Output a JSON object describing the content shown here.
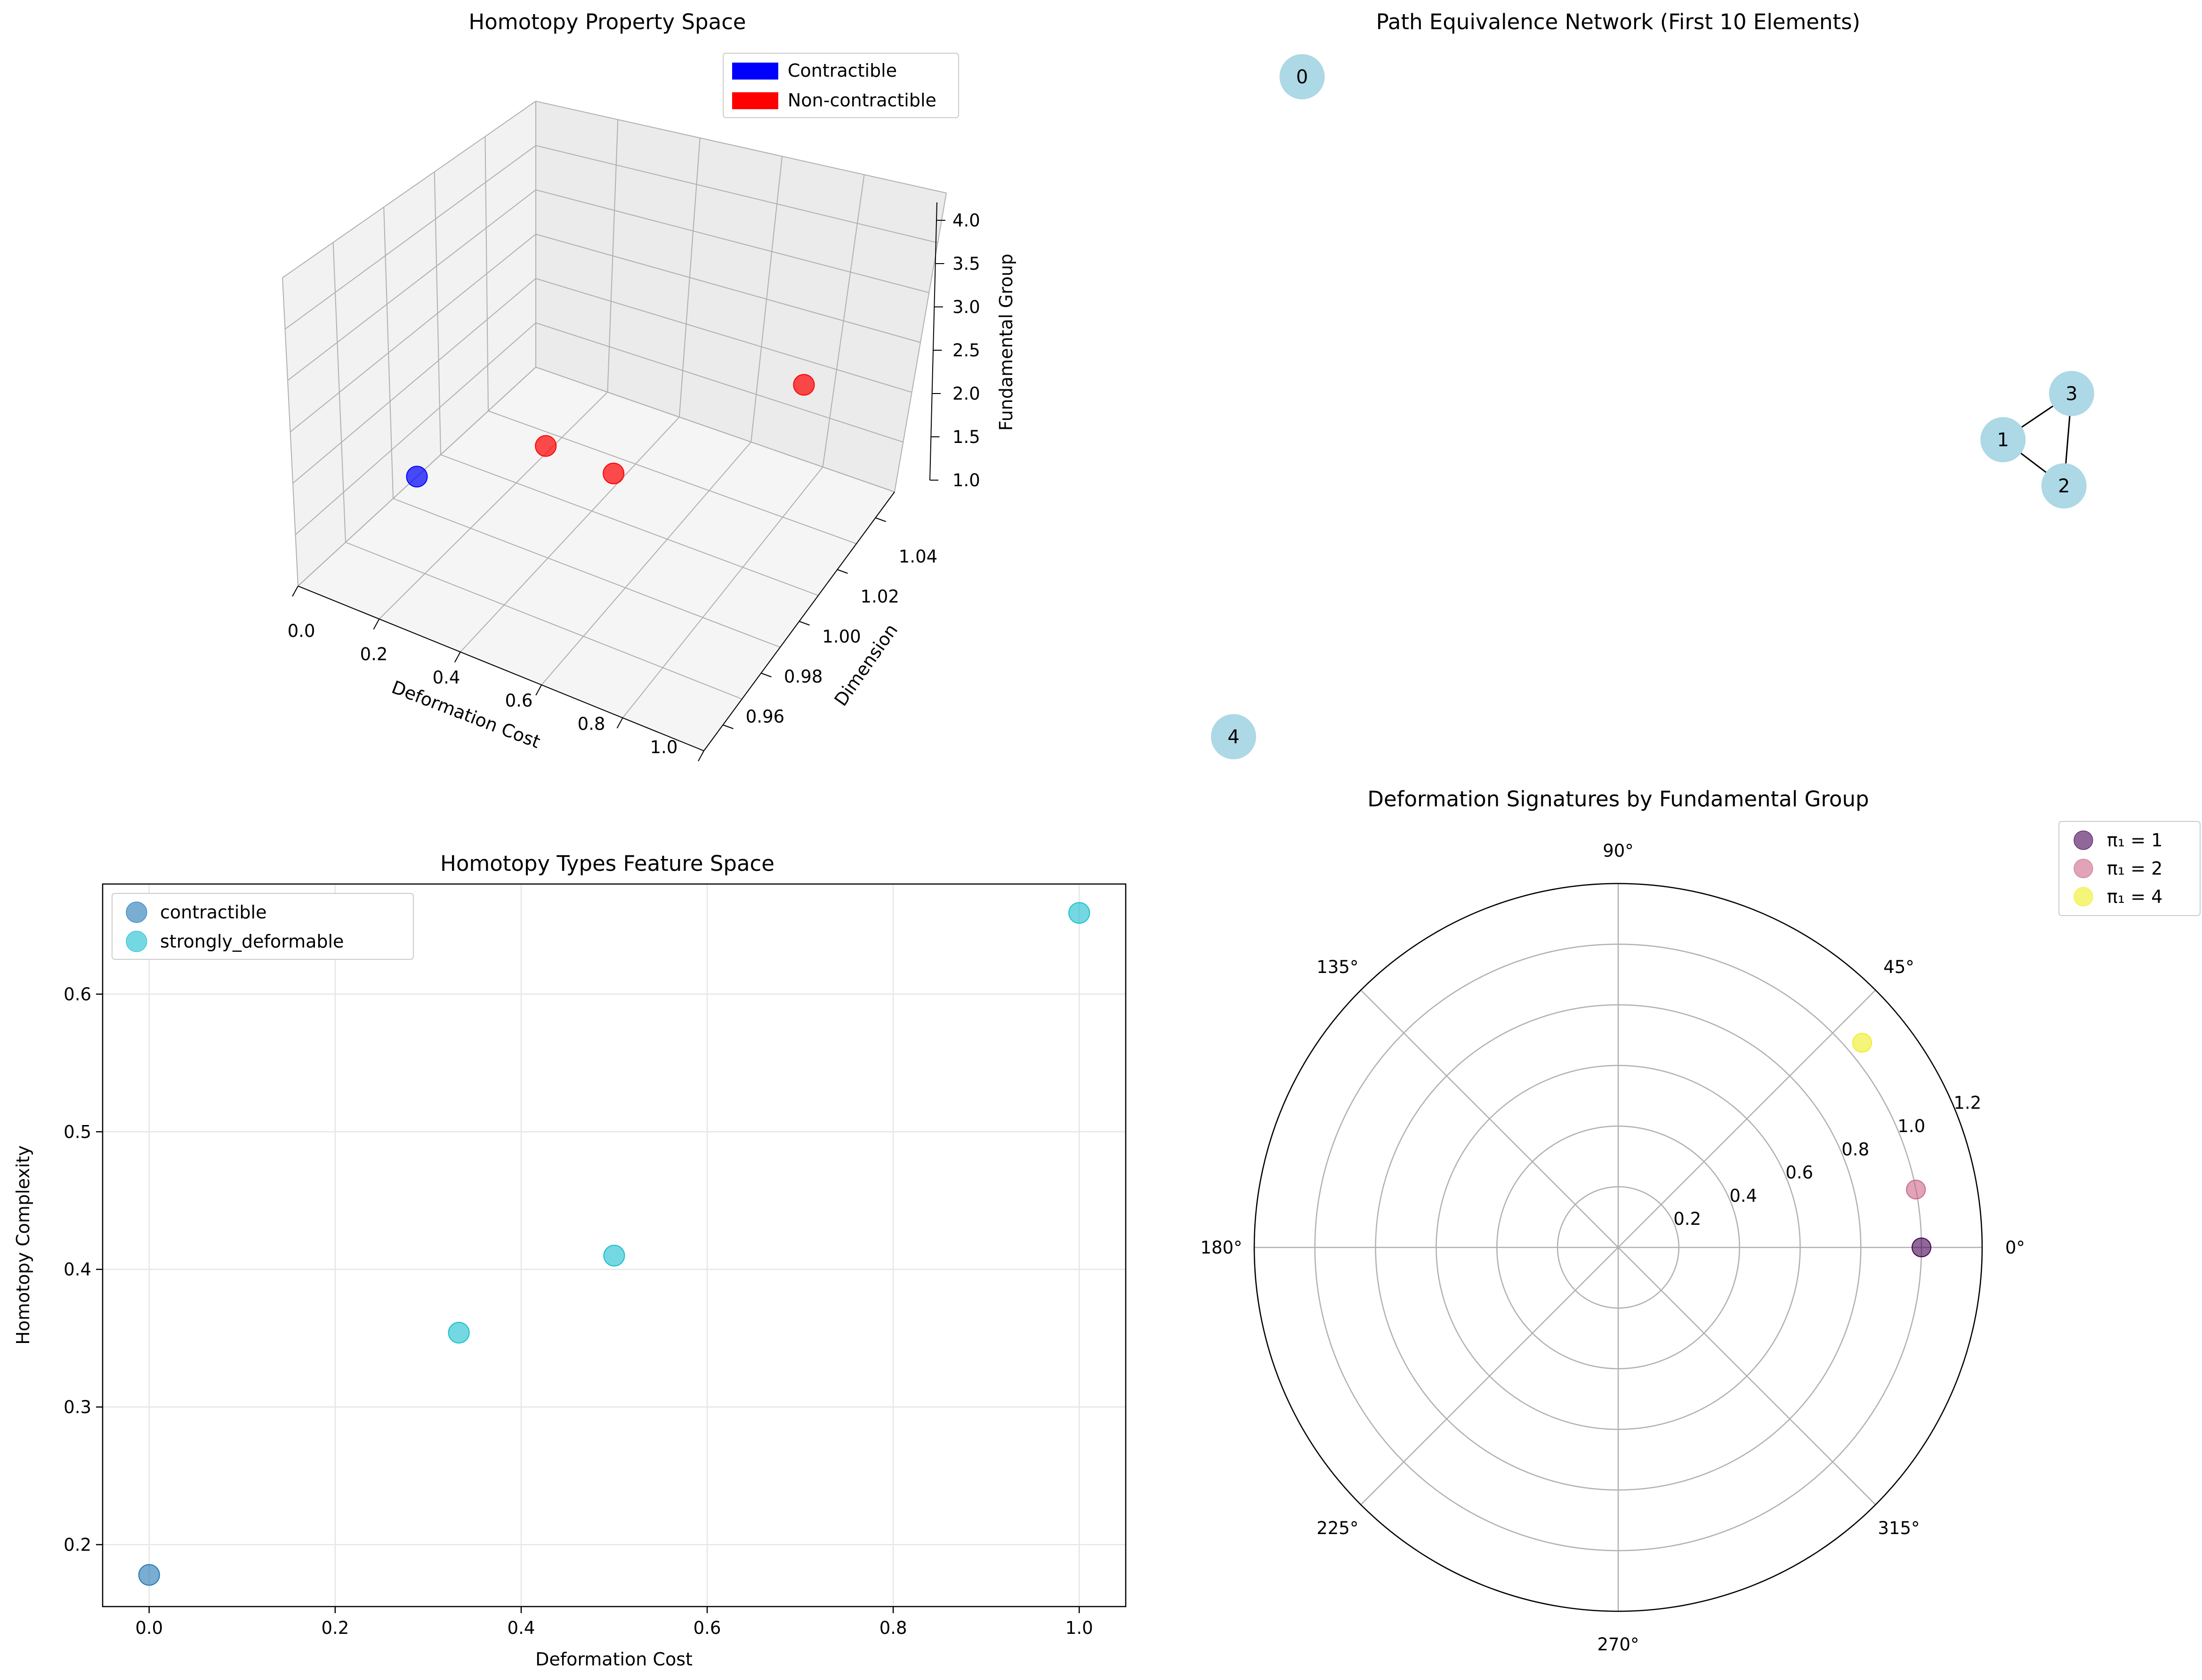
{
  "chart_data": [
    {
      "type": "scatter",
      "projection": "3d",
      "title": "Homotopy Property Space",
      "xlabel": "Deformation Cost",
      "ylabel": "Dimension",
      "zlabel": "Fundamental Group",
      "x_ticks": [
        "0.0",
        "0.2",
        "0.4",
        "0.6",
        "0.8",
        "1.0"
      ],
      "y_ticks": [
        "0.96",
        "0.98",
        "1.00",
        "1.02",
        "1.04"
      ],
      "z_ticks": [
        "1.0",
        "1.5",
        "2.0",
        "2.5",
        "3.0",
        "3.5",
        "4.0"
      ],
      "xlim": [
        0,
        1
      ],
      "ylim": [
        0.95,
        1.05
      ],
      "zlim": [
        1,
        4
      ],
      "legend": [
        {
          "label": "Contractible",
          "color": "#0000ff"
        },
        {
          "label": "Non-contractible",
          "color": "#ff0000"
        }
      ],
      "points": [
        {
          "x": 0.0,
          "y": 1.0,
          "z": 1,
          "group": "Contractible"
        },
        {
          "x": 0.333,
          "y": 1.0,
          "z": 2,
          "group": "Non-contractible"
        },
        {
          "x": 0.5,
          "y": 1.0,
          "z": 2,
          "group": "Non-contractible"
        },
        {
          "x": 1.0,
          "y": 1.0,
          "z": 4,
          "group": "Non-contractible"
        }
      ]
    },
    {
      "type": "network",
      "title": "Path Equivalence Network (First 10 Elements)",
      "node_color": "#add8e6",
      "nodes": [
        {
          "id": "0",
          "x": 0.0,
          "y": 1.0
        },
        {
          "id": "1",
          "x": 0.92,
          "y": 0.45
        },
        {
          "id": "2",
          "x": 1.0,
          "y": 0.38
        },
        {
          "id": "3",
          "x": 1.01,
          "y": 0.52
        },
        {
          "id": "4",
          "x": -0.09,
          "y": 0.0
        }
      ],
      "edges": [
        [
          "1",
          "3"
        ],
        [
          "1",
          "2"
        ],
        [
          "2",
          "3"
        ]
      ]
    },
    {
      "type": "scatter",
      "title": "Homotopy Types Feature Space",
      "xlabel": "Deformation Cost",
      "ylabel": "Homotopy Complexity",
      "xlim": [
        -0.05,
        1.05
      ],
      "ylim": [
        0.155,
        0.68
      ],
      "x_ticks": [
        0.0,
        0.2,
        0.4,
        0.6,
        0.8,
        1.0
      ],
      "y_ticks": [
        0.2,
        0.3,
        0.4,
        0.5,
        0.6
      ],
      "series": [
        {
          "name": "contractible",
          "color": "#1f77b4",
          "points": [
            [
              0.0,
              0.178
            ]
          ]
        },
        {
          "name": "strongly_deformable",
          "color": "#17becf",
          "points": [
            [
              0.333,
              0.354
            ],
            [
              0.5,
              0.41
            ],
            [
              1.0,
              0.659
            ]
          ]
        }
      ]
    },
    {
      "type": "polar",
      "title": "Deformation Signatures by Fundamental Group",
      "rlim": [
        0,
        1.2
      ],
      "r_ticks": [
        "0.2",
        "0.4",
        "0.6",
        "0.8",
        "1.0",
        "1.2"
      ],
      "theta_ticks": [
        "0°",
        "45°",
        "90°",
        "135°",
        "180°",
        "225°",
        "270°",
        "315°"
      ],
      "series": [
        {
          "name": "π₁ = 1",
          "color": "#440154",
          "points": [
            [
              0,
              1.0
            ]
          ]
        },
        {
          "name": "π₁ = 2",
          "color": "#cc6688",
          "points": [
            [
              11,
              1.0
            ]
          ]
        },
        {
          "name": "π₁ = 4",
          "color": "#eeee22",
          "points": [
            [
              40,
              1.05
            ]
          ]
        }
      ]
    }
  ]
}
